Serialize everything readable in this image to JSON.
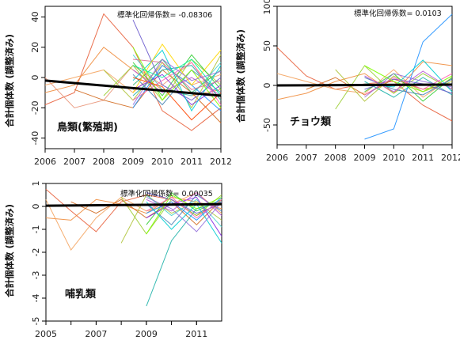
{
  "chart_data": [
    {
      "type": "line",
      "id": "birds",
      "title": "",
      "annotation": "鳥類(繁殖期)",
      "coefficient_label": "標準化回帰係数= -0.08306",
      "ylabel": "合計個体数 (調整済み)",
      "xlabel": "",
      "xlim": [
        2006,
        2012
      ],
      "ylim": [
        -47,
        47
      ],
      "x_ticks": [
        "2006",
        "2007",
        "2008",
        "2009",
        "2010",
        "2011",
        "2012"
      ],
      "y_ticks": [
        "-40",
        "-20",
        "0",
        "20",
        "40"
      ],
      "trend": {
        "x": [
          2006,
          2012
        ],
        "y": [
          -2,
          -12
        ],
        "color": "#000000"
      },
      "series": [
        {
          "color": "#e8603c",
          "x": [
            2006,
            2007,
            2008,
            2009,
            2010,
            2011,
            2012
          ],
          "y": [
            -18,
            -10,
            42,
            20,
            -22,
            -35,
            -20
          ]
        },
        {
          "color": "#f08c3c",
          "x": [
            2006,
            2007,
            2008,
            2009,
            2010,
            2011,
            2012
          ],
          "y": [
            -10,
            -5,
            20,
            5,
            -8,
            -12,
            -8
          ]
        },
        {
          "color": "#f4a460",
          "x": [
            2006,
            2007,
            2008,
            2009,
            2010,
            2011,
            2012
          ],
          "y": [
            -5,
            0,
            5,
            -10,
            8,
            -5,
            2
          ]
        },
        {
          "color": "#e9967a",
          "x": [
            2006,
            2007,
            2008,
            2009,
            2010,
            2011,
            2012
          ],
          "y": [
            0,
            -20,
            -15,
            8,
            -5,
            10,
            -15
          ]
        },
        {
          "color": "#d2691e",
          "x": [
            2007,
            2008,
            2009,
            2010,
            2011,
            2012
          ],
          "y": [
            -8,
            -15,
            -20,
            5,
            -10,
            -30
          ]
        },
        {
          "color": "#b0c43c",
          "x": [
            2008,
            2009,
            2010,
            2011,
            2012
          ],
          "y": [
            5,
            -15,
            10,
            -20,
            15
          ]
        },
        {
          "color": "#9acd32",
          "x": [
            2008,
            2009,
            2010,
            2011,
            2012
          ],
          "y": [
            -12,
            8,
            -15,
            12,
            -5
          ]
        },
        {
          "color": "#32cd32",
          "x": [
            2009,
            2010,
            2011,
            2012
          ],
          "y": [
            10,
            -12,
            15,
            -8
          ]
        },
        {
          "color": "#3cb371",
          "x": [
            2009,
            2010,
            2011,
            2012
          ],
          "y": [
            -5,
            12,
            -10,
            5
          ]
        },
        {
          "color": "#20b2aa",
          "x": [
            2009,
            2010,
            2011,
            2012
          ],
          "y": [
            -12,
            5,
            8,
            -15
          ]
        },
        {
          "color": "#48d1cc",
          "x": [
            2009,
            2010,
            2011,
            2012
          ],
          "y": [
            15,
            -8,
            -12,
            10
          ]
        },
        {
          "color": "#4682b4",
          "x": [
            2009,
            2010,
            2011,
            2012
          ],
          "y": [
            2,
            -18,
            5,
            -10
          ]
        },
        {
          "color": "#1e90ff",
          "x": [
            2009,
            2010,
            2011,
            2012
          ],
          "y": [
            -20,
            8,
            -5,
            -22
          ]
        },
        {
          "color": "#6a5acd",
          "x": [
            2009,
            2010,
            2011,
            2012
          ],
          "y": [
            38,
            -5,
            -15,
            0
          ]
        },
        {
          "color": "#8a2be2",
          "x": [
            2009,
            2010,
            2011,
            2012
          ],
          "y": [
            -8,
            2,
            -18,
            -5
          ]
        },
        {
          "color": "#ba55d3",
          "x": [
            2009,
            2010,
            2011,
            2012
          ],
          "y": [
            5,
            -10,
            0,
            -12
          ]
        },
        {
          "color": "#ff69b4",
          "x": [
            2009,
            2010,
            2011,
            2012
          ],
          "y": [
            -15,
            -2,
            10,
            -18
          ]
        },
        {
          "color": "#db7093",
          "x": [
            2009,
            2010,
            2011,
            2012
          ],
          "y": [
            12,
            10,
            -8,
            -2
          ]
        },
        {
          "color": "#00ced1",
          "x": [
            2009,
            2010,
            2011,
            2012
          ],
          "y": [
            -2,
            18,
            -22,
            8
          ]
        },
        {
          "color": "#7fff00",
          "x": [
            2009,
            2010,
            2011,
            2012
          ],
          "y": [
            20,
            -15,
            5,
            -20
          ]
        },
        {
          "color": "#ffd700",
          "x": [
            2009,
            2010,
            2011,
            2012
          ],
          "y": [
            -10,
            22,
            -5,
            18
          ]
        },
        {
          "color": "#ff4500",
          "x": [
            2009,
            2010,
            2011,
            2012
          ],
          "y": [
            0,
            -6,
            -28,
            -10
          ]
        },
        {
          "color": "#00fa9a",
          "x": [
            2009,
            2010,
            2011,
            2012
          ],
          "y": [
            8,
            0,
            12,
            -12
          ]
        },
        {
          "color": "#9370db",
          "x": [
            2009,
            2010,
            2011,
            2012
          ],
          "y": [
            -18,
            12,
            -2,
            4
          ]
        }
      ]
    },
    {
      "type": "line",
      "id": "butterflies",
      "title": "",
      "annotation": "チョウ類",
      "coefficient_label": "標準化回帰係数= 0.0103",
      "ylabel": "合計個体数 (調整済み)",
      "xlabel": "",
      "xlim": [
        2006,
        2012
      ],
      "ylim": [
        -75,
        100
      ],
      "x_ticks": [
        "2006",
        "2007",
        "2008",
        "2009",
        "2010",
        "2011",
        "2012"
      ],
      "y_ticks": [
        "-50",
        "0",
        "50",
        "100"
      ],
      "trend": {
        "x": [
          2006,
          2012
        ],
        "y": [
          0,
          1
        ],
        "color": "#000000"
      },
      "series": [
        {
          "color": "#e8603c",
          "x": [
            2006,
            2007,
            2008,
            2009,
            2010,
            2011,
            2012
          ],
          "y": [
            48,
            12,
            -5,
            2,
            5,
            -25,
            -45
          ]
        },
        {
          "color": "#f08c3c",
          "x": [
            2006,
            2007,
            2008,
            2009,
            2010,
            2011,
            2012
          ],
          "y": [
            -18,
            -10,
            5,
            15,
            -10,
            30,
            25
          ]
        },
        {
          "color": "#f4a460",
          "x": [
            2006,
            2007,
            2008,
            2009,
            2010,
            2011,
            2012
          ],
          "y": [
            15,
            5,
            -5,
            -10,
            20,
            -15,
            10
          ]
        },
        {
          "color": "#d2691e",
          "x": [
            2007,
            2008,
            2009,
            2010,
            2011,
            2012
          ],
          "y": [
            -5,
            10,
            -12,
            8,
            -5,
            2
          ]
        },
        {
          "color": "#b0c43c",
          "x": [
            2008,
            2009,
            2010,
            2011,
            2012
          ],
          "y": [
            20,
            -20,
            12,
            -8,
            5
          ]
        },
        {
          "color": "#9acd32",
          "x": [
            2008,
            2009,
            2010,
            2011,
            2012
          ],
          "y": [
            -30,
            25,
            -10,
            15,
            -5
          ]
        },
        {
          "color": "#32cd32",
          "x": [
            2009,
            2010,
            2011,
            2012
          ],
          "y": [
            -8,
            15,
            -20,
            10
          ]
        },
        {
          "color": "#20b2aa",
          "x": [
            2009,
            2010,
            2011,
            2012
          ],
          "y": [
            5,
            -15,
            10,
            -12
          ]
        },
        {
          "color": "#1e90ff",
          "x": [
            2009,
            2010,
            2011,
            2012
          ],
          "y": [
            -68,
            -55,
            55,
            90
          ]
        },
        {
          "color": "#4682b4",
          "x": [
            2009,
            2010,
            2011,
            2012
          ],
          "y": [
            10,
            -5,
            -12,
            8
          ]
        },
        {
          "color": "#6a5acd",
          "x": [
            2009,
            2010,
            2011,
            2012
          ],
          "y": [
            -5,
            8,
            2,
            -10
          ]
        },
        {
          "color": "#ba55d3",
          "x": [
            2009,
            2010,
            2011,
            2012
          ],
          "y": [
            12,
            -8,
            18,
            -5
          ]
        },
        {
          "color": "#ff69b4",
          "x": [
            2009,
            2010,
            2011,
            2012
          ],
          "y": [
            -12,
            10,
            -5,
            15
          ]
        },
        {
          "color": "#00ced1",
          "x": [
            2009,
            2010,
            2011,
            2012
          ],
          "y": [
            2,
            -2,
            32,
            -8
          ]
        },
        {
          "color": "#7fff00",
          "x": [
            2009,
            2010,
            2011,
            2012
          ],
          "y": [
            25,
            5,
            -8,
            12
          ]
        },
        {
          "color": "#9370db",
          "x": [
            2009,
            2010,
            2011,
            2012
          ],
          "y": [
            -15,
            15,
            5,
            -2
          ]
        }
      ]
    },
    {
      "type": "line",
      "id": "mammals",
      "title": "",
      "annotation": "哺乳類",
      "coefficient_label": "標準化回帰係数= 0.00035",
      "ylabel": "合計個体数 (調整済み)",
      "xlabel": "",
      "xlim": [
        2005,
        2012
      ],
      "ylim": [
        -5,
        1
      ],
      "x_ticks": [
        "2005",
        "2007",
        "2009",
        "2011"
      ],
      "tick_years": [
        2005,
        2006,
        2007,
        2008,
        2009,
        2010,
        2011
      ],
      "y_ticks": [
        "-5",
        "-4",
        "-3",
        "-2",
        "-1",
        "0",
        "1"
      ],
      "trend": {
        "x": [
          2005,
          2012
        ],
        "y": [
          0.03,
          0.1
        ],
        "color": "#000000"
      },
      "series": [
        {
          "color": "#e8603c",
          "x": [
            2005,
            2006,
            2007,
            2008,
            2009,
            2010,
            2011,
            2012
          ],
          "y": [
            0.75,
            -0.2,
            -1.1,
            0.2,
            0.5,
            0.3,
            -0.4,
            0.2
          ]
        },
        {
          "color": "#f08c3c",
          "x": [
            2005,
            2006,
            2007,
            2008,
            2009,
            2010,
            2011,
            2012
          ],
          "y": [
            -0.5,
            -0.6,
            0.3,
            0.1,
            -0.3,
            0.4,
            0.2,
            -0.1
          ]
        },
        {
          "color": "#f4a460",
          "x": [
            2005,
            2006,
            2007,
            2008,
            2009,
            2010,
            2011,
            2012
          ],
          "y": [
            0.3,
            -1.9,
            -0.5,
            0.4,
            -0.2,
            0.1,
            0.6,
            -0.3
          ]
        },
        {
          "color": "#d2691e",
          "x": [
            2006,
            2007,
            2008,
            2009,
            2010,
            2011,
            2012
          ],
          "y": [
            0.2,
            -0.3,
            0.3,
            -0.5,
            0.2,
            -0.8,
            0.3
          ]
        },
        {
          "color": "#b0c43c",
          "x": [
            2008,
            2009,
            2010,
            2011,
            2012
          ],
          "y": [
            -1.6,
            0.5,
            -0.3,
            0.2,
            -0.6
          ]
        },
        {
          "color": "#9acd32",
          "x": [
            2008,
            2009,
            2010,
            2011,
            2012
          ],
          "y": [
            0.4,
            -1.2,
            0.3,
            -0.4,
            0.5
          ]
        },
        {
          "color": "#32cd32",
          "x": [
            2009,
            2010,
            2011,
            2012
          ],
          "y": [
            -0.8,
            0.6,
            -0.2,
            0.3
          ]
        },
        {
          "color": "#20b2aa",
          "x": [
            2009,
            2010,
            2011,
            2012
          ],
          "y": [
            -4.35,
            -1.5,
            -0.1,
            0.2
          ]
        },
        {
          "color": "#48d1cc",
          "x": [
            2009,
            2010,
            2011,
            2012
          ],
          "y": [
            0.5,
            -0.4,
            0.3,
            -0.9
          ]
        },
        {
          "color": "#1e90ff",
          "x": [
            2009,
            2010,
            2011,
            2012
          ],
          "y": [
            -0.3,
            0.2,
            -0.6,
            0.4
          ]
        },
        {
          "color": "#4682b4",
          "x": [
            2009,
            2010,
            2011,
            2012
          ],
          "y": [
            0.1,
            -0.8,
            0.5,
            -0.2
          ]
        },
        {
          "color": "#6a5acd",
          "x": [
            2009,
            2010,
            2011,
            2012
          ],
          "y": [
            0.6,
            0.3,
            -0.3,
            0.1
          ]
        },
        {
          "color": "#8a2be2",
          "x": [
            2009,
            2010,
            2011,
            2012
          ],
          "y": [
            -0.5,
            0.1,
            0.4,
            -1.3
          ]
        },
        {
          "color": "#ba55d3",
          "x": [
            2009,
            2010,
            2011,
            2012
          ],
          "y": [
            0.3,
            -0.2,
            0.6,
            -0.4
          ]
        },
        {
          "color": "#ff69b4",
          "x": [
            2009,
            2010,
            2011,
            2012
          ],
          "y": [
            -0.2,
            0.4,
            -0.5,
            0.3
          ]
        },
        {
          "color": "#00ced1",
          "x": [
            2009,
            2010,
            2011,
            2012
          ],
          "y": [
            0.2,
            -1.0,
            0.1,
            -1.6
          ]
        },
        {
          "color": "#7fff00",
          "x": [
            2009,
            2010,
            2011,
            2012
          ],
          "y": [
            -1.2,
            0.5,
            -0.1,
            0.4
          ]
        },
        {
          "color": "#9370db",
          "x": [
            2009,
            2010,
            2011,
            2012
          ],
          "y": [
            0.4,
            -0.1,
            -1.1,
            0.2
          ]
        }
      ]
    }
  ]
}
